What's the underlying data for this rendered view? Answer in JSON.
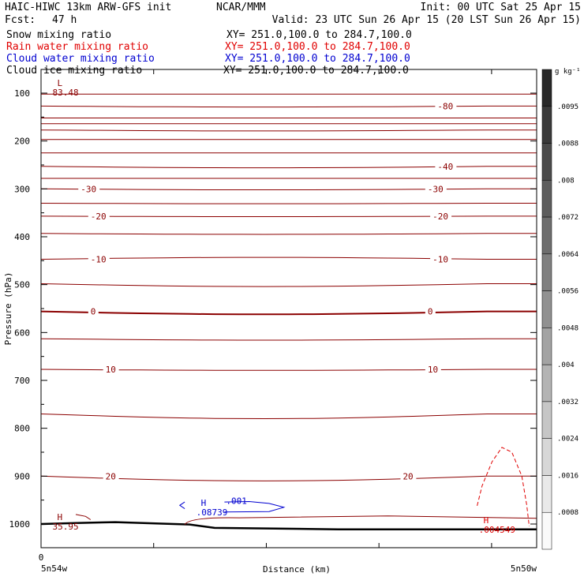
{
  "header": {
    "title": "HAIC-HIWC 13km ARW-GFS init",
    "org": "NCAR/MMM",
    "init": "Init: 00 UTC Sat 25 Apr 15",
    "fcst_label": "Fcst:",
    "fcst_value": "47 h",
    "valid": "Valid: 23 UTC Sun 26 Apr 15 (20 LST Sun 26 Apr 15)",
    "fields": [
      {
        "name": "Snow mixing ratio",
        "xy": "XY= 251.0,100.0 to 284.7,100.0",
        "color": "#000000"
      },
      {
        "name": "Rain water mixing ratio",
        "xy": "XY= 251.0,100.0 to 284.7,100.0",
        "color": "#e00000"
      },
      {
        "name": "Cloud water mixing ratio",
        "xy": "XY= 251.0,100.0 to 284.7,100.0",
        "color": "#0000d0"
      },
      {
        "name": "Cloud ice mixing ratio",
        "xy": "XY= 251.0,100.0 to 284.7,100.0",
        "color": "#000000"
      }
    ]
  },
  "chart_data": {
    "type": "cross-section contour",
    "ylabel": "Pressure (hPa)",
    "xlabel": "Distance (km)",
    "yticks": [
      100,
      200,
      300,
      400,
      500,
      600,
      700,
      800,
      900,
      1000
    ],
    "ylim": [
      1050,
      50
    ],
    "xtick_zero": "0",
    "left_label": "5n54w",
    "right_label": "5n50w",
    "temperature_lines": [
      {
        "p": 102,
        "dp": 0
      },
      {
        "p": 127,
        "dp": 2,
        "label": "-80",
        "label_x": 0.8
      },
      {
        "p": 152,
        "dp": 0
      },
      {
        "p": 164,
        "dp": 0
      },
      {
        "p": 177,
        "dp": 2
      },
      {
        "p": 197,
        "dp": 0
      },
      {
        "p": 225,
        "dp": 0
      },
      {
        "p": 253,
        "dp": 3,
        "label": "-40",
        "label_x": 0.8
      },
      {
        "p": 278,
        "dp": 0
      },
      {
        "p": 300,
        "dp": 2,
        "label": "-30",
        "label_x": 0.08,
        "label2_x": 0.78
      },
      {
        "p": 330,
        "dp": 1
      },
      {
        "p": 357,
        "dp": 1,
        "label": "-20",
        "label_x": 0.1,
        "label2_x": 0.79
      },
      {
        "p": 393,
        "dp": 2
      },
      {
        "p": 447,
        "dp": -4,
        "label": "-10",
        "label_x": 0.1,
        "label2_x": 0.79
      },
      {
        "p": 498,
        "dp": 6
      },
      {
        "p": 556,
        "dp": 6,
        "label": "0",
        "label_x": 0.1,
        "label2_x": 0.78,
        "bold": true
      },
      {
        "p": 613,
        "dp": 3
      },
      {
        "p": 677,
        "dp": 2,
        "label": "10",
        "label_x": 0.13,
        "label2_x": 0.78
      },
      {
        "p": 770,
        "dp": 10
      },
      {
        "p": 900,
        "dp": 10,
        "label": "20",
        "label_x": 0.13,
        "label2_x": 0.73
      }
    ],
    "extrema": [
      {
        "symbol": "L",
        "value": "83.48",
        "p": 85,
        "x": 0.02,
        "color": "#8b0000"
      },
      {
        "symbol": "H",
        "value": "35.95",
        "p": 992,
        "x": 0.02,
        "color": "#8b0000"
      },
      {
        "symbol": "H",
        "value": ".08739",
        "p": 962,
        "x": 0.31,
        "color": "#0000d0"
      },
      {
        "symbol": "H",
        "value": ".004549",
        "p": 998,
        "x": 0.88,
        "color": "#e00000"
      }
    ],
    "cloud_water_contour_label": ".001",
    "colorbar": {
      "unit": "g kg⁻¹",
      "ticks": [
        ".0095",
        ".0088",
        ".008",
        ".0072",
        ".0064",
        ".0056",
        ".0048",
        ".004",
        ".0032",
        ".0024",
        ".0016",
        ".0008"
      ]
    }
  }
}
